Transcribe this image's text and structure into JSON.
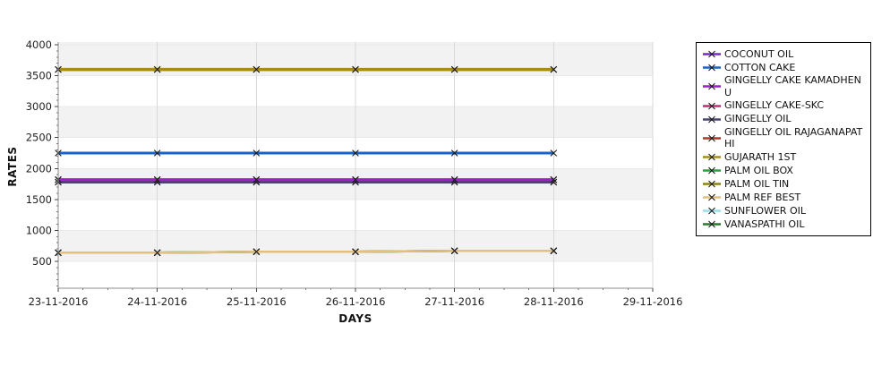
{
  "page": {
    "background": "#ffffff"
  },
  "chart_data": {
    "type": "line",
    "title": "",
    "xlabel": "DAYS",
    "ylabel": "RATES",
    "x_axis_ticks": [
      "23-11-2016",
      "24-11-2016",
      "25-11-2016",
      "26-11-2016",
      "27-11-2016",
      "28-11-2016",
      "29-11-2016"
    ],
    "x": [
      "23-11-2016",
      "24-11-2016",
      "25-11-2016",
      "26-11-2016",
      "27-11-2016",
      "28-11-2016"
    ],
    "y_ticks": [
      500,
      1000,
      1500,
      2000,
      2500,
      3000,
      3500,
      4000
    ],
    "ylim": [
      66,
      4043
    ],
    "grid": true,
    "legend_position": "right",
    "marker": {
      "shape": "x",
      "color": "#1a1a1a"
    },
    "band_fill": "#f2f2f2",
    "shaded_bands": [
      [
        500,
        1000
      ],
      [
        1500,
        2000
      ],
      [
        2500,
        3000
      ],
      [
        3500,
        4043
      ]
    ],
    "series": [
      {
        "name": "COCONUT OIL",
        "color": "#7a2cc8",
        "line_width": 3,
        "values": [
          1820,
          1820,
          1820,
          1820,
          1820,
          1820
        ]
      },
      {
        "name": "COTTON CAKE",
        "color": "#1863c6",
        "line_width": 3,
        "values": [
          2250,
          2250,
          2250,
          2250,
          2250,
          2250
        ]
      },
      {
        "name": "GINGELLY CAKE KAMADHENU",
        "color": "#9922cc",
        "line_width": 3,
        "values": [
          1820,
          1820,
          1820,
          1820,
          1820,
          1820
        ]
      },
      {
        "name": "GINGELLY CAKE-SKC",
        "color": "#b53077",
        "line_width": 3,
        "values": [
          1780,
          1780,
          1780,
          1780,
          1780,
          1780
        ]
      },
      {
        "name": "GINGELLY OIL",
        "color": "#49466e",
        "line_width": 3,
        "values": [
          1780,
          1780,
          1780,
          1780,
          1780,
          1780
        ]
      },
      {
        "name": "GINGELLY OIL RAJAGANAPATHI",
        "color": "#a63c28",
        "line_width": 3,
        "values": [
          3600,
          3600,
          3600,
          3600,
          3600,
          3600
        ]
      },
      {
        "name": "GUJARATH 1ST",
        "color": "#ab8b16",
        "line_width": 3.5,
        "values": [
          3600,
          3600,
          3600,
          3600,
          3600,
          3600
        ]
      },
      {
        "name": "PALM OIL BOX",
        "color": "#2f9e41",
        "line_width": 2.5,
        "values": [
          640,
          640,
          655,
          655,
          670,
          670
        ]
      },
      {
        "name": "PALM OIL TIN",
        "color": "#8a8410",
        "line_width": 2.5,
        "values": [
          640,
          640,
          655,
          655,
          670,
          670
        ]
      },
      {
        "name": "PALM REF BEST",
        "color": "#e4bf82",
        "line_width": 2.5,
        "values": [
          640,
          640,
          655,
          655,
          670,
          670
        ]
      },
      {
        "name": "SUNFLOWER OIL",
        "color": "#99e0e6",
        "line_width": 2.5,
        "values": [
          640,
          640,
          655,
          655,
          670,
          670
        ]
      },
      {
        "name": "VANASPATHI OIL",
        "color": "#2b7a33",
        "line_width": 2.5,
        "values": [
          640,
          640,
          655,
          655,
          670,
          670
        ]
      }
    ],
    "draw_order": [
      0,
      3,
      5,
      7,
      8,
      10,
      11,
      1,
      4,
      2,
      6,
      9
    ]
  }
}
